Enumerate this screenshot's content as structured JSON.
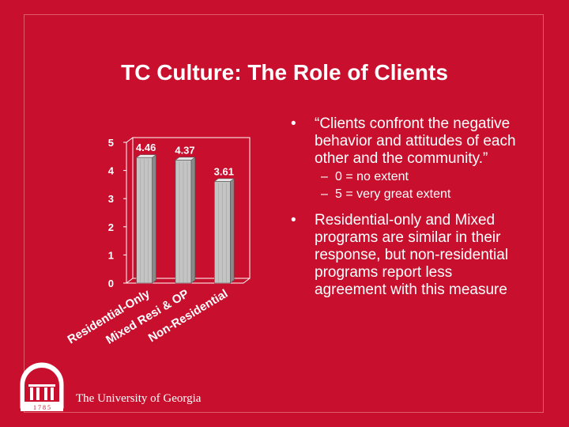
{
  "slide": {
    "title": "TC Culture: The Role of Clients",
    "university": "The University of Georgia",
    "logo_year": "1 7 8 5"
  },
  "chart_data": {
    "type": "bar",
    "categories": [
      "Residential-Only",
      "Mixed Resi & OP",
      "Non-Residential"
    ],
    "values": [
      4.46,
      4.37,
      3.61
    ],
    "value_labels": [
      "4.46",
      "4.37",
      "3.61"
    ],
    "ylim": [
      0,
      5
    ],
    "yticks": [
      "0",
      "1",
      "2",
      "3",
      "4",
      "5"
    ],
    "category_labels": [
      "Residential-Only",
      "Mixed Resi & OP",
      "Non-Residential"
    ],
    "title": "",
    "xlabel": "",
    "ylabel": "",
    "grid": false,
    "colors": {
      "bar_front": "#c4c4c4",
      "bar_side": "#8a8a8a",
      "bar_top": "#e8e8e8",
      "text": "#ffffff",
      "plot_bg": "#c8102e"
    }
  },
  "bullets": [
    {
      "text": "“Clients confront the negative behavior and attitudes of each other and the community.”",
      "subitems": [
        "0 = no extent",
        "5 = very great extent"
      ]
    },
    {
      "text": "Residential-only and Mixed programs are similar in their response, but non-residential programs report less agreement with this measure",
      "subitems": []
    }
  ],
  "markers": {
    "bullet": "•",
    "dash": "–"
  }
}
